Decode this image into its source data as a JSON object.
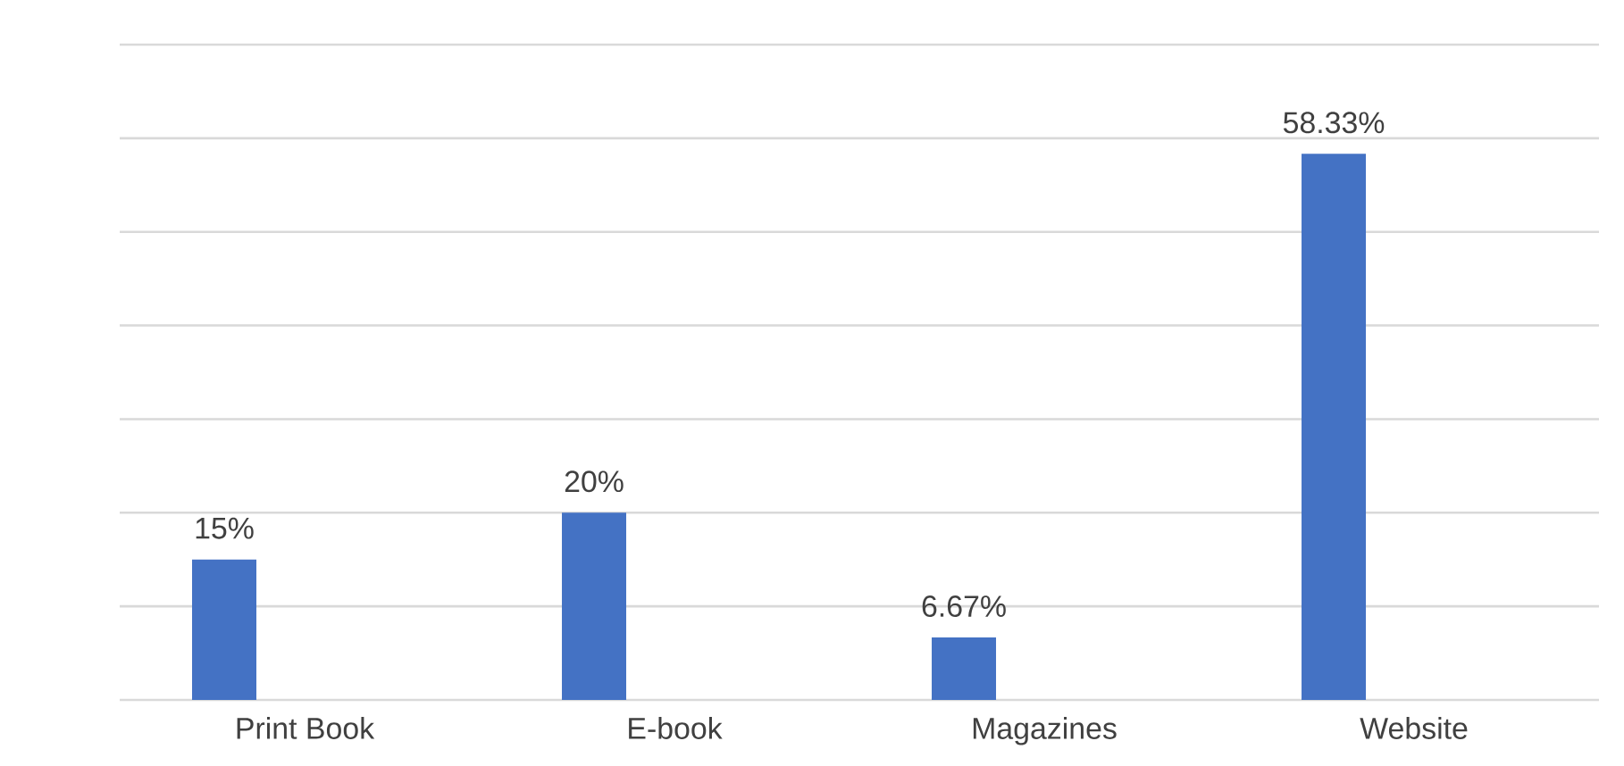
{
  "chart_data": {
    "type": "bar",
    "categories": [
      "Print Book",
      "E-book",
      "Magazines",
      "Website"
    ],
    "values": [
      15,
      20,
      6.67,
      58.33
    ],
    "value_labels": [
      "15%",
      "20%",
      "6.67%",
      "58.33%"
    ],
    "color": "#4472c4",
    "ylim": [
      0,
      70
    ],
    "yticks": [
      {
        "value": 0,
        "label": null
      },
      {
        "value": 10,
        "label": null
      },
      {
        "value": 20,
        "label": null
      },
      {
        "value": 30,
        "label": null
      },
      {
        "value": 40,
        "label": null
      },
      {
        "value": 50,
        "label": null
      },
      {
        "value": 60,
        "label": null
      },
      {
        "value": 70,
        "label": null
      }
    ],
    "grid": "y",
    "tick_labels": "x"
  }
}
